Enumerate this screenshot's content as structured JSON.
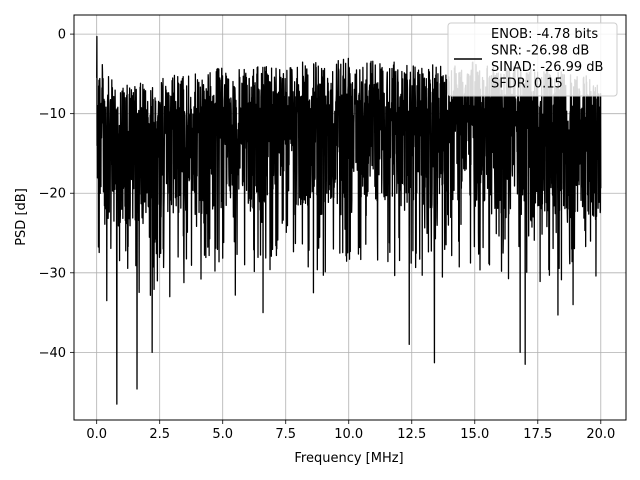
{
  "chart_data": {
    "type": "line",
    "title": "",
    "xlabel": "Frequency [MHz]",
    "ylabel": "PSD [dB]",
    "xlim": [
      -0.9,
      21.0
    ],
    "ylim": [
      -48.5,
      2.4
    ],
    "xticks": [
      0.0,
      2.5,
      5.0,
      7.5,
      10.0,
      12.5,
      15.0,
      17.5,
      20.0
    ],
    "xtick_labels": [
      "0.0",
      "2.5",
      "5.0",
      "7.5",
      "10.0",
      "12.5",
      "15.0",
      "17.5",
      "20.0"
    ],
    "yticks": [
      0,
      -10,
      -20,
      -30,
      -40
    ],
    "ytick_labels": [
      "0",
      "−10",
      "−20",
      "−30",
      "−40"
    ],
    "grid": true,
    "legend": {
      "position": "top-right",
      "entries": [
        "ENOB: -4.78 bits",
        "SNR: -26.98 dB",
        "SINAD: -26.99 dB",
        "SFDR: 0.15"
      ]
    },
    "series": [
      {
        "color": "#000000",
        "x_range": [
          0.0,
          20.0
        ],
        "description_note": "dense noise-like PSD trace sampled over 0-20 MHz",
        "envelope_top": [
          [
            0.0,
            -0.3
          ],
          [
            0.2,
            -1.5
          ],
          [
            0.5,
            -3.5
          ],
          [
            1.0,
            -4.5
          ],
          [
            2.0,
            -4.0
          ],
          [
            3.0,
            -3.0
          ],
          [
            4.0,
            -3.0
          ],
          [
            5.0,
            -2.0
          ],
          [
            6.0,
            -2.5
          ],
          [
            7.0,
            -1.5
          ],
          [
            8.0,
            -1.5
          ],
          [
            9.0,
            -1.5
          ],
          [
            10.0,
            0.0
          ],
          [
            11.0,
            -1.0
          ],
          [
            12.0,
            -1.5
          ],
          [
            13.0,
            -2.0
          ],
          [
            14.0,
            -1.5
          ],
          [
            15.0,
            -1.5
          ],
          [
            16.0,
            -2.0
          ],
          [
            17.0,
            -2.0
          ],
          [
            18.0,
            -2.5
          ],
          [
            19.0,
            -3.0
          ],
          [
            20.0,
            -3.5
          ]
        ],
        "deep_dips": [
          [
            0.4,
            -33.5
          ],
          [
            0.8,
            -46.5
          ],
          [
            1.6,
            -44.6
          ],
          [
            2.2,
            -40.0
          ],
          [
            2.9,
            -33.0
          ],
          [
            5.5,
            -32.8
          ],
          [
            6.6,
            -35.0
          ],
          [
            8.6,
            -32.5
          ],
          [
            12.4,
            -39.0
          ],
          [
            13.4,
            -41.3
          ],
          [
            16.8,
            -40.0
          ],
          [
            17.0,
            -41.5
          ],
          [
            18.3,
            -35.3
          ],
          [
            18.9,
            -34.0
          ]
        ]
      }
    ]
  }
}
